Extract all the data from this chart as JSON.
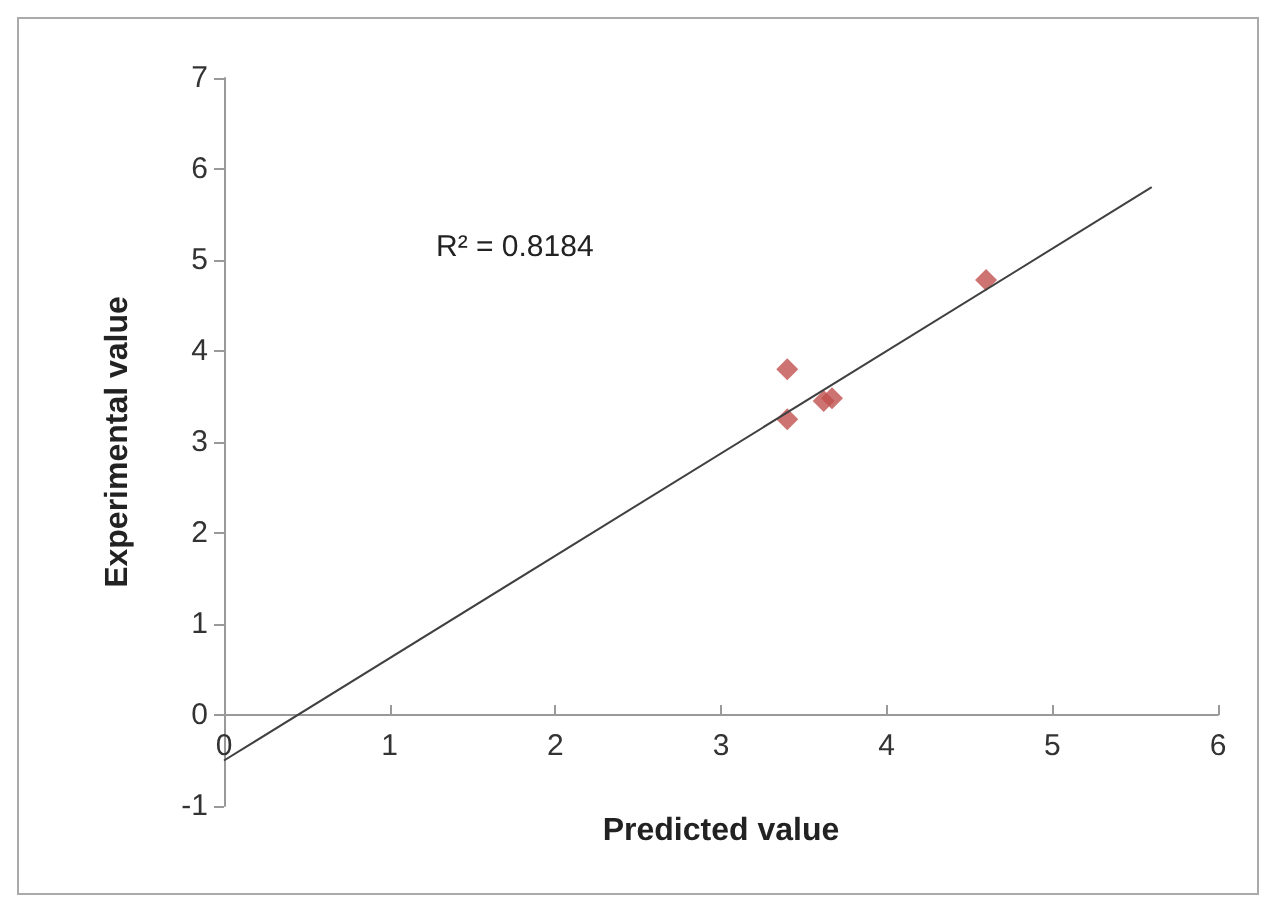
{
  "chart_data": {
    "type": "scatter",
    "xlabel": "Predicted value",
    "ylabel": "Experimental value",
    "annotations": [
      "R² = 0.8184"
    ],
    "series": [
      {
        "color": "#c0504d",
        "marker": "diamond",
        "x": [
          3.4,
          3.4,
          3.62,
          3.67,
          4.6
        ],
        "values": [
          3.8,
          3.25,
          3.45,
          3.48,
          4.78
        ]
      },
      {
        "type": "line",
        "color": "#404040",
        "marker": "none",
        "line_style": "solid",
        "x": [
          0,
          5.6
        ],
        "values": [
          -0.5,
          5.8
        ]
      }
    ],
    "xlim": [
      0,
      6
    ],
    "xticks": [
      0,
      1,
      2,
      3,
      4,
      5,
      6
    ],
    "ylim": [
      -1,
      7
    ],
    "yticks": [
      -1,
      0,
      1,
      2,
      3,
      4,
      5,
      6,
      7
    ]
  }
}
